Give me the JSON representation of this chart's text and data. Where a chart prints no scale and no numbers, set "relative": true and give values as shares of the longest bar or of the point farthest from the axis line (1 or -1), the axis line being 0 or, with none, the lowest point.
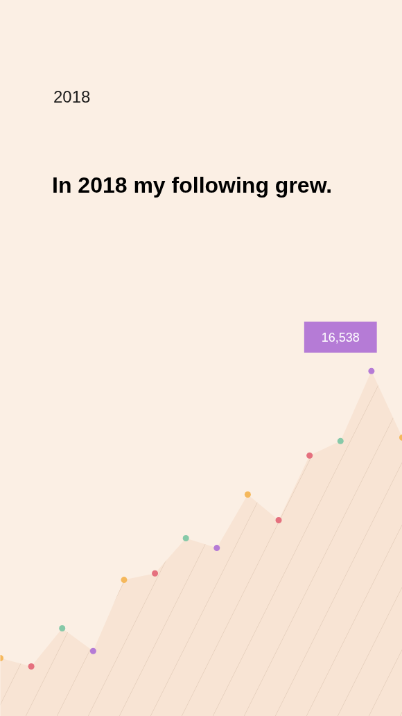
{
  "chart_data": {
    "type": "area",
    "subtitle": "2018",
    "title": "In 2018 my following grew.",
    "relative": true,
    "marker": "circle",
    "categories": [
      null,
      null,
      null,
      null,
      null,
      null,
      null,
      null,
      null,
      null,
      null,
      null,
      null,
      null
    ],
    "series": [
      {
        "color": "#f8e4d4",
        "values": [
          0.028,
          0,
          0.129,
          0.052,
          0.293,
          0.315,
          0.434,
          0.401,
          0.582,
          0.495,
          0.714,
          0.763,
          1,
          0.775
        ],
        "colors": [
          "#f5b85c",
          "#e5707e",
          "#86c9a8",
          "#b57bd6",
          "#f5b85c",
          "#e5707e",
          "#86c9a8",
          "#b57bd6",
          "#f5b85c",
          "#e5707e",
          "#e5707e",
          "#86c9a8",
          "#b57bd6",
          "#f5b85c"
        ]
      }
    ],
    "annotations": [
      "16,538"
    ],
    "grid": false
  }
}
